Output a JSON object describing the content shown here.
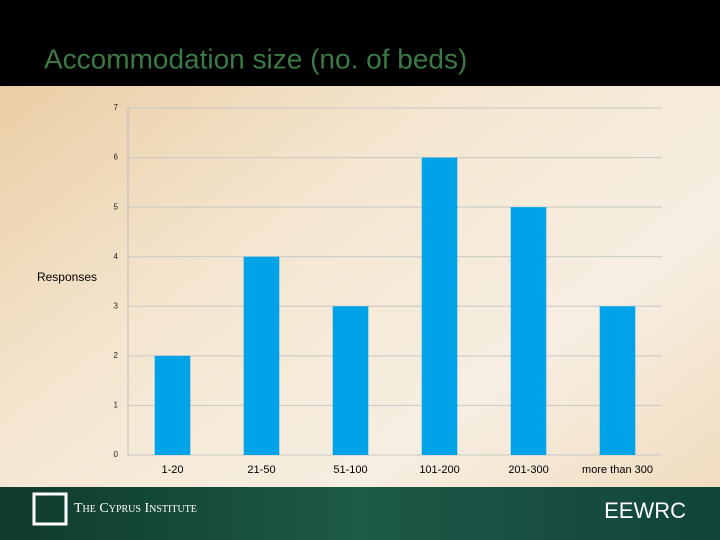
{
  "chart_data": {
    "type": "bar",
    "title": "Accommodation size (no. of beds)",
    "y_label": "Responses",
    "categories": [
      "1-20",
      "21-50",
      "51-100",
      "101-200",
      "201-300",
      "more than 300"
    ],
    "values": [
      2,
      4,
      3,
      6,
      5,
      3
    ],
    "color": "#00a2e8",
    "ylim": [
      0,
      7
    ],
    "yticks": [
      0,
      1,
      2,
      3,
      4,
      5,
      6,
      7
    ],
    "grid": true
  },
  "footer": {
    "left": "The Cyprus Institute",
    "right": "EEWRC"
  }
}
